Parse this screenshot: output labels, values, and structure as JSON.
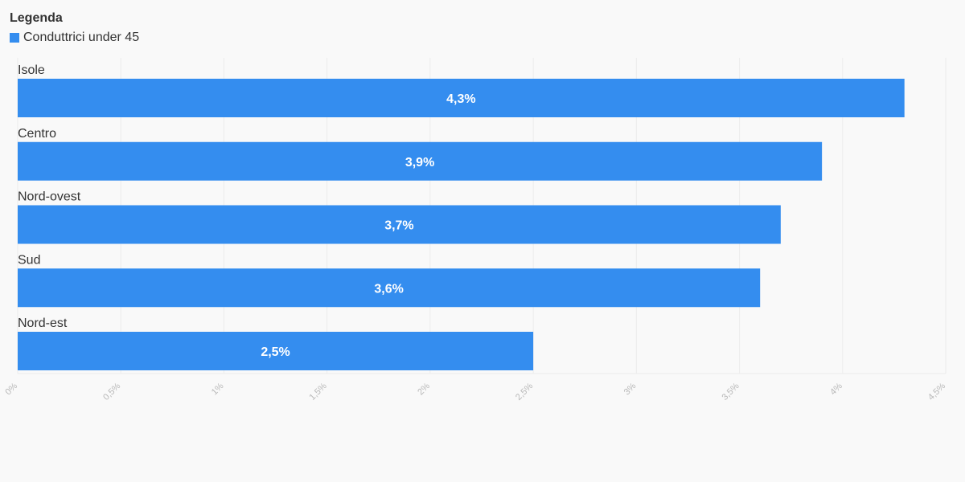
{
  "legend": {
    "title": "Legenda",
    "item_label": "Conduttrici under 45"
  },
  "colors": {
    "bar": "#348def",
    "grid": "#ececec",
    "axis_text": "#b8b8b8",
    "background": "#f9f9f9"
  },
  "chart_data": {
    "type": "bar",
    "orientation": "horizontal",
    "categories": [
      "Isole",
      "Centro",
      "Nord-ovest",
      "Sud",
      "Nord-est"
    ],
    "series": [
      {
        "name": "Conduttrici under 45",
        "values": [
          4.3,
          3.9,
          3.7,
          3.6,
          2.5
        ],
        "value_labels": [
          "4,3%",
          "3,9%",
          "3,7%",
          "3,6%",
          "2,5%"
        ]
      }
    ],
    "xlim": [
      0,
      4.5
    ],
    "xticks": [
      0,
      0.5,
      1,
      1.5,
      2,
      2.5,
      3,
      3.5,
      4,
      4.5
    ],
    "xtick_labels": [
      "0%",
      "0,5%",
      "1%",
      "1,5%",
      "2%",
      "2,5%",
      "3%",
      "3,5%",
      "4%",
      "4,5%"
    ],
    "grid": true,
    "legend_position": "top-left"
  }
}
